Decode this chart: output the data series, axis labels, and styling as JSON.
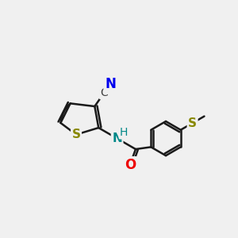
{
  "background_color": "#f0f0f0",
  "bond_color": "#1a1a1a",
  "figsize": [
    3.0,
    3.0
  ],
  "dpi": 100,
  "atom_colors": {
    "N_cyano": "#0000ee",
    "C_cyano": "#404040",
    "N_amide": "#008888",
    "S_thio": "#888800",
    "S_methyl": "#888800",
    "O_amide": "#ee0000",
    "H_amide": "#008888"
  },
  "atom_labels": {
    "N_cyano": "N",
    "C_cyano": "C",
    "N_amide_H": "H",
    "N_amide": "N",
    "S_thio": "S",
    "S_methyl": "S",
    "O_amide": "O"
  },
  "xlim": [
    0,
    12
  ],
  "ylim": [
    0,
    12
  ]
}
